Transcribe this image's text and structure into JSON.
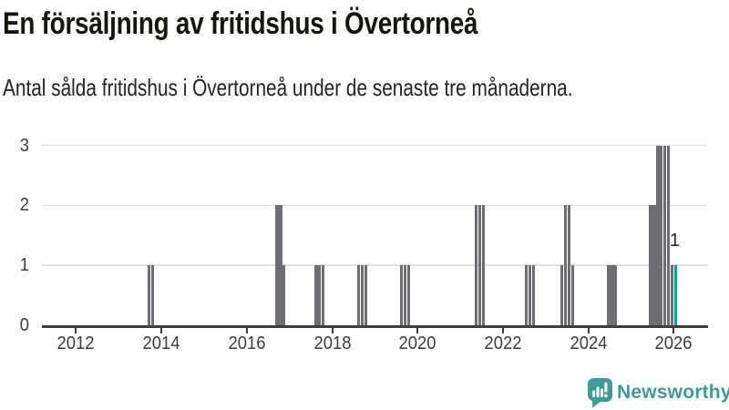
{
  "header": {
    "title": "En försäljning av fritidshus i Övertorneå",
    "subtitle": "Antal sålda fritidshus i Övertorneå under de senaste tre månaderna."
  },
  "footer": {
    "brand": "Newsworthy",
    "brand_color": "#3E9C96",
    "logo_icon": "newsworthy-chart-bubble-icon"
  },
  "chart_data": {
    "type": "bar",
    "title": "En försäljning av fritidshus i Övertorneå",
    "subtitle": "Antal sålda fritidshus i Övertorneå under de senaste tre månaderna.",
    "xlabel": "",
    "ylabel": "",
    "grid": "horizontal",
    "legend": "none",
    "ylim": [
      0,
      3
    ],
    "xlim_years": [
      2011.22,
      2026.8
    ],
    "y_ticks": [
      0,
      1,
      2,
      3
    ],
    "x_tick_labels": [
      "2012",
      "2014",
      "2016",
      "2018",
      "2020",
      "2022",
      "2024",
      "2026"
    ],
    "bar_color": "#6F6D72",
    "highlight_color": "#0DA29A",
    "annotation": {
      "text": "1",
      "month": "2026-01"
    },
    "series": [
      {
        "name": "Antal sålda fritidshus",
        "points": [
          {
            "month": "2013-09",
            "value": 1
          },
          {
            "month": "2013-10",
            "value": 1
          },
          {
            "month": "2016-09",
            "value": 2
          },
          {
            "month": "2016-10",
            "value": 2
          },
          {
            "month": "2016-11",
            "value": 1
          },
          {
            "month": "2017-08",
            "value": 1
          },
          {
            "month": "2017-09",
            "value": 1
          },
          {
            "month": "2017-10",
            "value": 1
          },
          {
            "month": "2018-08",
            "value": 1
          },
          {
            "month": "2018-09",
            "value": 1
          },
          {
            "month": "2018-10",
            "value": 1
          },
          {
            "month": "2019-08",
            "value": 1
          },
          {
            "month": "2019-09",
            "value": 1
          },
          {
            "month": "2019-10",
            "value": 1
          },
          {
            "month": "2021-05",
            "value": 2
          },
          {
            "month": "2021-06",
            "value": 2
          },
          {
            "month": "2021-07",
            "value": 2
          },
          {
            "month": "2022-07",
            "value": 1
          },
          {
            "month": "2022-08",
            "value": 1
          },
          {
            "month": "2022-09",
            "value": 1
          },
          {
            "month": "2023-05",
            "value": 1
          },
          {
            "month": "2023-06",
            "value": 2
          },
          {
            "month": "2023-07",
            "value": 2
          },
          {
            "month": "2023-08",
            "value": 1
          },
          {
            "month": "2024-06",
            "value": 1
          },
          {
            "month": "2024-07",
            "value": 1
          },
          {
            "month": "2024-08",
            "value": 1
          },
          {
            "month": "2025-06",
            "value": 2
          },
          {
            "month": "2025-07",
            "value": 2
          },
          {
            "month": "2025-08",
            "value": 3
          },
          {
            "month": "2025-09",
            "value": 3
          },
          {
            "month": "2025-10",
            "value": 3
          },
          {
            "month": "2025-11",
            "value": 3
          },
          {
            "month": "2025-12",
            "value": 1
          },
          {
            "month": "2026-01",
            "value": 1,
            "highlight": true
          }
        ]
      }
    ]
  }
}
